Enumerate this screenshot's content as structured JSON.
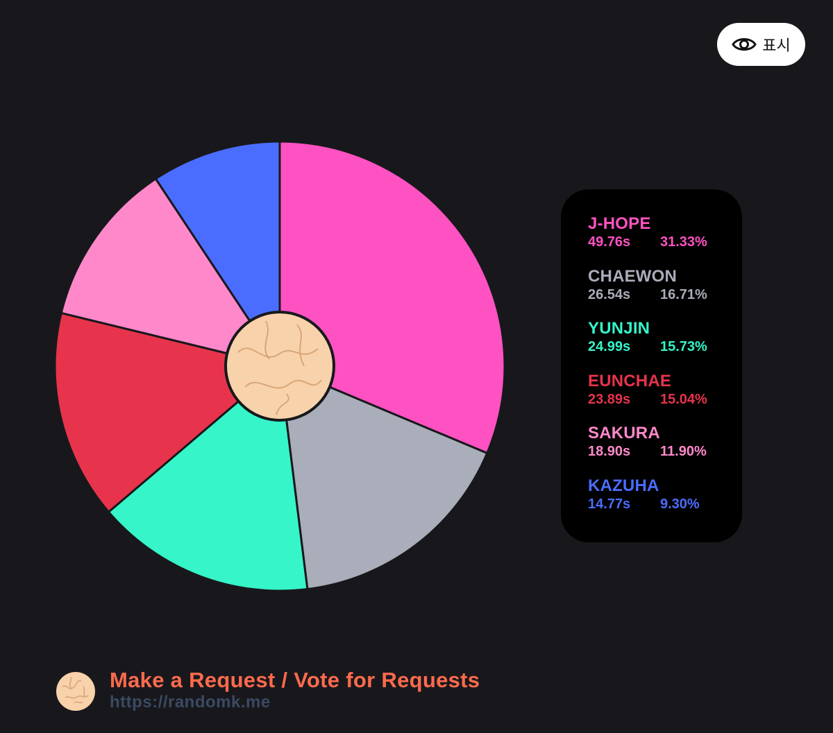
{
  "show_button": {
    "label": "표시",
    "icon": "eye-icon"
  },
  "chart_data": {
    "type": "pie",
    "categories": [
      "J-HOPE",
      "CHAEWON",
      "YUNJIN",
      "EUNCHAE",
      "SAKURA",
      "KAZUHA"
    ],
    "values": [
      31.33,
      16.71,
      15.73,
      15.04,
      11.9,
      9.3
    ],
    "seconds": [
      "49.76s",
      "26.54s",
      "24.99s",
      "23.89s",
      "18.90s",
      "14.77s"
    ],
    "percents": [
      "31.33%",
      "16.71%",
      "15.73%",
      "15.04%",
      "11.90%",
      "9.30%"
    ],
    "colors": [
      "#ff52c2",
      "#aaadba",
      "#35f5c9",
      "#e7344c",
      "#ff88cb",
      "#4b6dff"
    ],
    "legend": "right"
  },
  "footer": {
    "title": "Make a Request / Vote for Requests",
    "url": "https://randomk.me"
  }
}
